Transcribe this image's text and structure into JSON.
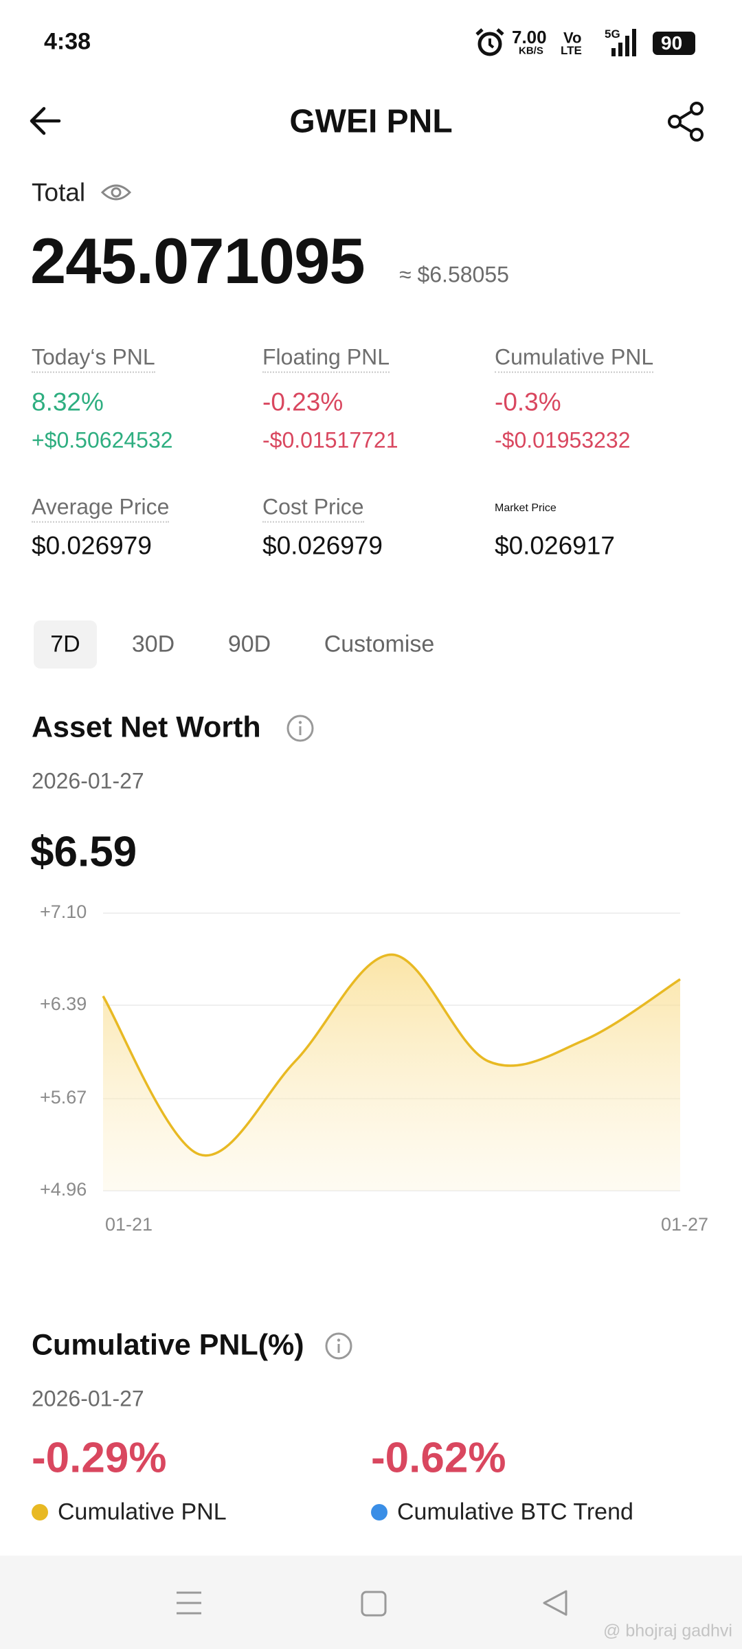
{
  "status_bar": {
    "time": "4:38",
    "speed": "7.00",
    "speed_unit": "KB/S",
    "volte_top": "Vo",
    "volte_bottom": "LTE",
    "network": "5G",
    "battery": "90"
  },
  "header": {
    "title": "GWEI PNL"
  },
  "total": {
    "label": "Total",
    "amount": "245.071095",
    "approx": "≈ $6.58055"
  },
  "stats": [
    {
      "label": "Today‘s PNL",
      "value": "8.32%",
      "sub": "+$0.50624532"
    },
    {
      "label": "Floating PNL",
      "value": "-0.23%",
      "sub": "-$0.01517721"
    },
    {
      "label": "Cumulative PNL",
      "value": "-0.3%",
      "sub": "-$0.01953232"
    }
  ],
  "prices": [
    {
      "label": "Average Price",
      "value": "$0.026979"
    },
    {
      "label": "Cost Price",
      "value": "$0.026979"
    },
    {
      "label": "Market Price",
      "value": "$0.026917"
    }
  ],
  "tabs": [
    "7D",
    "30D",
    "90D",
    "Customise"
  ],
  "asset_net_worth": {
    "title": "Asset Net Worth",
    "date": "2026-01-27",
    "value": "$6.59"
  },
  "chart_data": {
    "type": "line",
    "categories": [
      "01-21",
      null,
      null,
      null,
      null,
      null,
      "01-27"
    ],
    "values": [
      6.46,
      5.24,
      5.96,
      6.78,
      5.96,
      6.12,
      6.59
    ],
    "color": "#e8b923",
    "ylim": [
      4.96,
      7.1
    ],
    "yticks": [
      {
        "value": 7.1,
        "label": "+7.10"
      },
      {
        "value": 6.39,
        "label": "+6.39"
      },
      {
        "value": 5.67,
        "label": "+5.67"
      },
      {
        "value": 4.96,
        "label": "+4.96"
      }
    ],
    "grid": true
  },
  "cumulative_pnl": {
    "title": "Cumulative PNL(%)",
    "date": "2026-01-27",
    "items": [
      {
        "value": "-0.29%",
        "label": "Cumulative PNL"
      },
      {
        "value": "-0.62%",
        "label": "Cumulative BTC Trend"
      }
    ]
  },
  "watermark": "@ bhojraj gadhvi"
}
